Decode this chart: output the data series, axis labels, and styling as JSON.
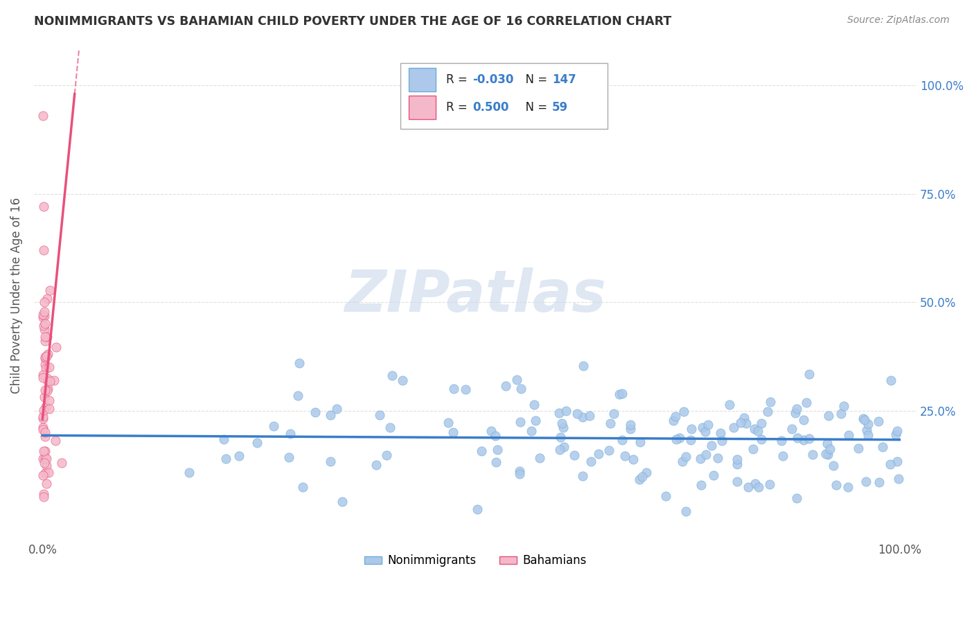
{
  "title": "NONIMMIGRANTS VS BAHAMIAN CHILD POVERTY UNDER THE AGE OF 16 CORRELATION CHART",
  "source": "Source: ZipAtlas.com",
  "ylabel": "Child Poverty Under the Age of 16",
  "nonimmigrant_color": "#adc8ea",
  "nonimmigrant_edge": "#6baed6",
  "bahamian_color": "#f4b8cb",
  "bahamian_edge": "#e8507a",
  "trend_nonimmigrant_color": "#3a7dc9",
  "trend_bahamian_color": "#e8507a",
  "legend_R_nonimmigrant": "-0.030",
  "legend_N_nonimmigrant": "147",
  "legend_R_bahamian": "0.500",
  "legend_N_bahamian": "59",
  "watermark_color": "#c8d8ea",
  "grid_color": "#d8d8d8",
  "right_axis_color": "#3a7dc9",
  "title_color": "#333333",
  "source_color": "#888888"
}
